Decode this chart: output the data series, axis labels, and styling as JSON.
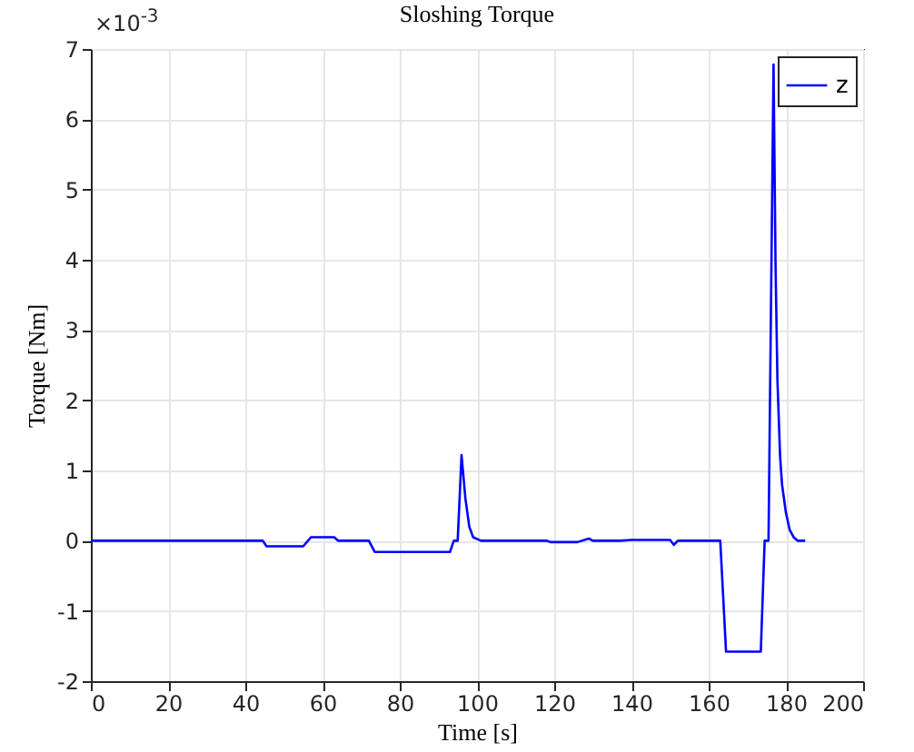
{
  "chart_data": {
    "type": "line",
    "title": "Sloshing Torque",
    "xlabel": "Time [s]",
    "ylabel": "Torque [Nm]",
    "annotations": [
      "×10$^{-3}$"
    ],
    "x": [
      0,
      44.5,
      45.5,
      55,
      57,
      63,
      64,
      72,
      73.5,
      93,
      94,
      95,
      96,
      97,
      98,
      99,
      101,
      118,
      119,
      126,
      129,
      130,
      137,
      140,
      150,
      151,
      152,
      163,
      164.5,
      173.5,
      174.5,
      175.5,
      176.8,
      177.3,
      177.8,
      178.5,
      179,
      180,
      181,
      182,
      183,
      185
    ],
    "series": [
      {
        "name": "z",
        "color": "#0000ff",
        "values": [
          0,
          0,
          -0.08,
          -0.08,
          0.05,
          0.05,
          0,
          0,
          -0.16,
          -0.16,
          0,
          0,
          1.22,
          0.6,
          0.2,
          0.05,
          0,
          0,
          -0.02,
          -0.02,
          0.03,
          0,
          0,
          0.01,
          0.01,
          -0.06,
          0,
          0,
          -1.58,
          -1.58,
          0,
          0,
          6.78,
          4,
          2.3,
          1.2,
          0.8,
          0.4,
          0.15,
          0.05,
          0,
          0
        ]
      }
    ],
    "xlim": [
      0,
      200
    ],
    "xticks": [
      0,
      20,
      40,
      60,
      80,
      100,
      120,
      140,
      160,
      180,
      200
    ],
    "ylim": [
      -2,
      7
    ],
    "yticks": [
      -2,
      -1,
      0,
      1,
      2,
      3,
      4,
      5,
      6,
      7
    ],
    "grid": true,
    "legend": "top right"
  }
}
